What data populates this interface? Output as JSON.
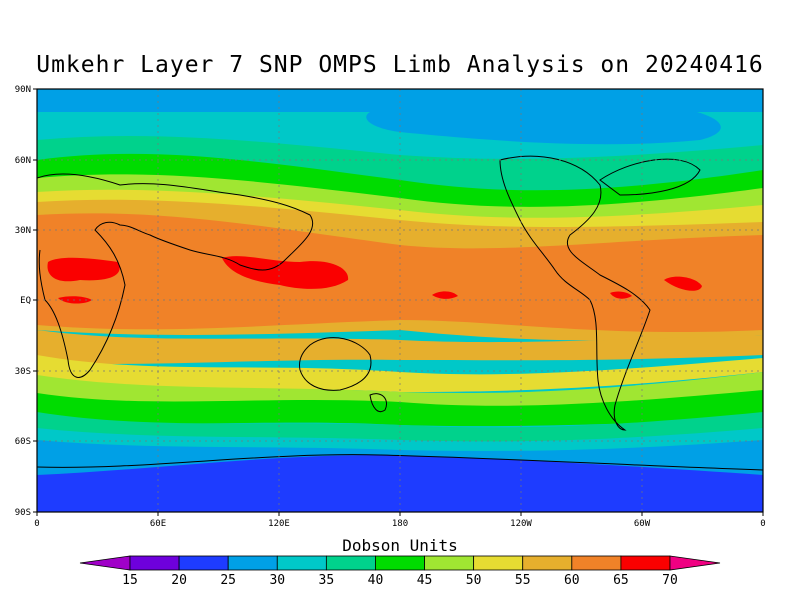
{
  "title": "Umkehr Layer 7 SNP OMPS Limb Analysis on 20240416",
  "map": {
    "lat_labels": [
      "90N",
      "60N",
      "30N",
      "EQ",
      "30S",
      "60S",
      "90S"
    ],
    "lon_labels": [
      "0",
      "60E",
      "120E",
      "180",
      "120W",
      "60W",
      "0"
    ],
    "projection": "cylindrical equidistant",
    "grid": "dotted"
  },
  "colorbar": {
    "title": "Dobson Units",
    "ticks": [
      "15",
      "20",
      "25",
      "30",
      "35",
      "40",
      "45",
      "50",
      "55",
      "60",
      "65",
      "70"
    ],
    "colors": [
      "#a000c8",
      "#6e00dc",
      "#1e3cff",
      "#00a0e6",
      "#00c8c8",
      "#00d28c",
      "#00dc00",
      "#a0e632",
      "#e6dc32",
      "#e6af2d",
      "#f08228",
      "#fa0000",
      "#f00082"
    ]
  },
  "chart_data": {
    "type": "heatmap",
    "title": "Umkehr Layer 7 SNP OMPS Limb Analysis on 20240416",
    "units": "Dobson Units",
    "x_range": [
      0,
      360
    ],
    "y_range": [
      -90,
      90
    ],
    "levels": [
      15,
      20,
      25,
      30,
      35,
      40,
      45,
      50,
      55,
      60,
      65,
      70
    ],
    "zonal_bands": [
      {
        "lat": [
          80,
          90
        ],
        "value_range": [
          30,
          35
        ]
      },
      {
        "lat": [
          62,
          80
        ],
        "value_range": [
          35,
          40
        ]
      },
      {
        "lat": [
          50,
          62
        ],
        "value_range": [
          40,
          45
        ]
      },
      {
        "lat": [
          40,
          50
        ],
        "value_range": [
          45,
          55
        ]
      },
      {
        "lat": [
          25,
          40
        ],
        "value_range": [
          55,
          60
        ]
      },
      {
        "lat": [
          -15,
          25
        ],
        "value_range": [
          60,
          70
        ]
      },
      {
        "lat": [
          -25,
          -15
        ],
        "value_range": [
          55,
          60
        ]
      },
      {
        "lat": [
          -40,
          -25
        ],
        "value_range": [
          45,
          55
        ]
      },
      {
        "lat": [
          -50,
          -40
        ],
        "value_range": [
          40,
          45
        ]
      },
      {
        "lat": [
          -60,
          -50
        ],
        "value_range": [
          35,
          40
        ]
      },
      {
        "lat": [
          -72,
          -60
        ],
        "value_range": [
          25,
          35
        ]
      },
      {
        "lat": [
          -90,
          -72
        ],
        "value_range": [
          20,
          25
        ]
      }
    ]
  }
}
